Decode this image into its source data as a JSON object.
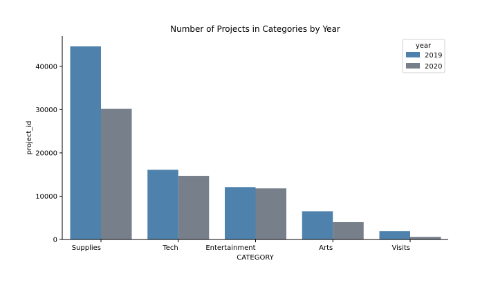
{
  "chart_data": {
    "type": "bar",
    "title": "Number of Projects in Categories by Year",
    "xlabel": "CATEGORY",
    "ylabel": "project_id",
    "categories": [
      "Supplies",
      "Tech",
      "Entertainment",
      "Arts",
      "Visits"
    ],
    "series": [
      {
        "name": "2019",
        "color": "#4e81ab",
        "values": [
          44600,
          16100,
          12100,
          6500,
          1900
        ]
      },
      {
        "name": "2020",
        "color": "#777f8b",
        "values": [
          30200,
          14700,
          11800,
          4000,
          600
        ]
      }
    ],
    "ylim": [
      0,
      47000
    ],
    "yticks": [
      0,
      10000,
      20000,
      30000,
      40000
    ],
    "legend": {
      "title": "year",
      "placement": "top-right"
    },
    "grid": false
  }
}
